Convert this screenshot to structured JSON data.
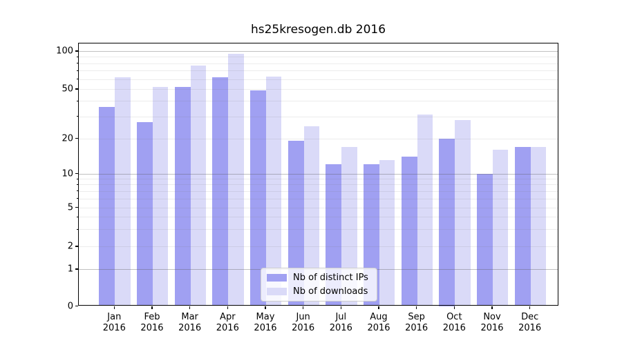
{
  "chart_data": {
    "type": "bar",
    "title": "hs25kresogen.db 2016",
    "categories": [
      "Jan",
      "Feb",
      "Mar",
      "Apr",
      "May",
      "Jun",
      "Jul",
      "Aug",
      "Sep",
      "Oct",
      "Nov",
      "Dec"
    ],
    "category_year": "2016",
    "series": [
      {
        "name": "Nb of distinct IPs",
        "color": "#a0a0f2",
        "values": [
          36,
          27,
          52,
          62,
          49,
          19,
          12,
          12,
          14,
          20,
          10,
          17
        ]
      },
      {
        "name": "Nb of downloads",
        "color": "#dadaf8",
        "values": [
          62,
          52,
          77,
          95,
          63,
          25,
          17,
          13,
          31,
          28,
          16,
          17
        ]
      }
    ],
    "yscale": "symlog",
    "y_tick_labels": [
      "100",
      "50",
      "20",
      "10",
      "5",
      "2",
      "1",
      "0"
    ],
    "y_ticks": [
      100,
      50,
      20,
      10,
      5,
      2,
      1,
      0
    ],
    "y_minor_ticks": [
      3,
      4,
      6,
      7,
      8,
      9,
      30,
      40,
      60,
      70,
      80,
      90
    ],
    "y_major_gridlines": [
      1,
      10,
      100
    ],
    "ylim": [
      0,
      120
    ],
    "grid": "on",
    "legend_position": "lower center",
    "xlabel": "",
    "ylabel": ""
  },
  "colors": {
    "grid_major": "rgba(90,90,90,0.38)",
    "grid_minor": "rgba(120,120,120,0.14)",
    "axis": "#000000",
    "background": "#ffffff"
  }
}
